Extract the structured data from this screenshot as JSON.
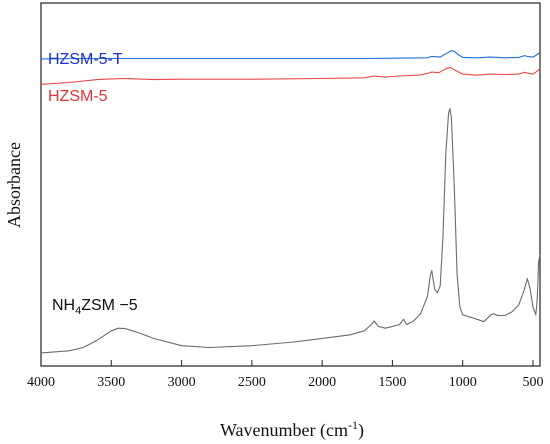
{
  "chart_data": {
    "type": "line",
    "xlabel": "Wavenumber (cm",
    "xlabel_sup": "-1",
    "xlabel_end": ")",
    "ylabel": "Absorbance",
    "xlim": [
      4000,
      450
    ],
    "x_reversed": true,
    "y_ticks_shown": false,
    "grid": false,
    "x_ticks": [
      4000,
      3500,
      3000,
      2500,
      2000,
      1500,
      1000,
      500
    ],
    "y_units": "arbitrary (normalized 0-100, offset traces)",
    "ylim": [
      0,
      100
    ],
    "series": [
      {
        "name": "HZSM-5-T",
        "color": "#1f6fd1",
        "label_color": "#1a2fd6",
        "points": [
          [
            4000,
            84.6
          ],
          [
            3700,
            84.7
          ],
          [
            3500,
            84.7
          ],
          [
            3000,
            84.7
          ],
          [
            2500,
            84.7
          ],
          [
            2000,
            84.7
          ],
          [
            1700,
            84.7
          ],
          [
            1250,
            84.9
          ],
          [
            1220,
            85.3
          ],
          [
            1160,
            85.1
          ],
          [
            1120,
            86.0
          ],
          [
            1080,
            86.9
          ],
          [
            1060,
            86.7
          ],
          [
            1030,
            85.7
          ],
          [
            1000,
            85.0
          ],
          [
            900,
            84.9
          ],
          [
            800,
            85.1
          ],
          [
            700,
            84.9
          ],
          [
            600,
            85.0
          ],
          [
            560,
            85.5
          ],
          [
            540,
            85.3
          ],
          [
            500,
            85.1
          ],
          [
            470,
            85.8
          ],
          [
            450,
            86.4
          ]
        ]
      },
      {
        "name": "HZSM-5",
        "color": "#e8474b",
        "label_color": "#e8303a",
        "points": [
          [
            4000,
            77.6
          ],
          [
            3800,
            78.1
          ],
          [
            3600,
            78.9
          ],
          [
            3500,
            79.1
          ],
          [
            3400,
            79.2
          ],
          [
            3200,
            78.9
          ],
          [
            3000,
            79.0
          ],
          [
            2500,
            79.0
          ],
          [
            2000,
            79.2
          ],
          [
            1700,
            79.4
          ],
          [
            1630,
            79.9
          ],
          [
            1550,
            79.6
          ],
          [
            1450,
            79.9
          ],
          [
            1300,
            80.2
          ],
          [
            1250,
            80.6
          ],
          [
            1220,
            81.0
          ],
          [
            1170,
            80.8
          ],
          [
            1120,
            81.9
          ],
          [
            1090,
            82.3
          ],
          [
            1060,
            81.6
          ],
          [
            1040,
            81.2
          ],
          [
            1000,
            80.4
          ],
          [
            900,
            80.1
          ],
          [
            800,
            80.4
          ],
          [
            700,
            80.3
          ],
          [
            600,
            80.4
          ],
          [
            560,
            80.9
          ],
          [
            530,
            80.6
          ],
          [
            500,
            80.4
          ],
          [
            470,
            81.2
          ],
          [
            450,
            81.9
          ]
        ]
      },
      {
        "name": "NH4ZSM-5",
        "color": "#6b6b6b",
        "label_color": "#111111",
        "points": [
          [
            4000,
            3.6
          ],
          [
            3800,
            4.2
          ],
          [
            3700,
            5.1
          ],
          [
            3600,
            7.1
          ],
          [
            3500,
            9.7
          ],
          [
            3450,
            10.4
          ],
          [
            3400,
            10.3
          ],
          [
            3300,
            9.1
          ],
          [
            3200,
            7.6
          ],
          [
            3000,
            5.6
          ],
          [
            2800,
            5.1
          ],
          [
            2500,
            5.6
          ],
          [
            2200,
            6.6
          ],
          [
            2000,
            7.6
          ],
          [
            1800,
            8.6
          ],
          [
            1700,
            9.7
          ],
          [
            1650,
            11.4
          ],
          [
            1630,
            12.4
          ],
          [
            1600,
            10.9
          ],
          [
            1550,
            10.4
          ],
          [
            1450,
            11.4
          ],
          [
            1420,
            12.9
          ],
          [
            1400,
            11.4
          ],
          [
            1350,
            12.4
          ],
          [
            1300,
            14.4
          ],
          [
            1250,
            19.2
          ],
          [
            1230,
            25.1
          ],
          [
            1220,
            26.3
          ],
          [
            1200,
            21.2
          ],
          [
            1180,
            20.2
          ],
          [
            1160,
            22.1
          ],
          [
            1140,
            35.9
          ],
          [
            1120,
            58.5
          ],
          [
            1100,
            69.7
          ],
          [
            1090,
            70.9
          ],
          [
            1080,
            68.2
          ],
          [
            1060,
            49.4
          ],
          [
            1040,
            25.1
          ],
          [
            1020,
            16.2
          ],
          [
            1000,
            14.1
          ],
          [
            950,
            13.5
          ],
          [
            900,
            12.9
          ],
          [
            850,
            12.2
          ],
          [
            800,
            14.1
          ],
          [
            780,
            14.4
          ],
          [
            750,
            13.9
          ],
          [
            700,
            13.9
          ],
          [
            650,
            14.9
          ],
          [
            600,
            16.9
          ],
          [
            560,
            21.2
          ],
          [
            540,
            24.1
          ],
          [
            520,
            21.2
          ],
          [
            500,
            16.2
          ],
          [
            480,
            14.1
          ],
          [
            470,
            18.2
          ],
          [
            460,
            28.6
          ],
          [
            450,
            30.6
          ]
        ]
      }
    ],
    "annotations": [
      {
        "series": "HZSM-5-T",
        "text": "HZSM-5-T",
        "at": [
          3990,
          87.2
        ]
      },
      {
        "series": "HZSM-5",
        "text": "HZSM-5",
        "at": [
          3990,
          80.9
        ]
      },
      {
        "series": "NH4ZSM-5",
        "text_parts": [
          "NH",
          "4",
          "ZSM −5"
        ],
        "at": [
          3960,
          16.3
        ]
      }
    ]
  }
}
